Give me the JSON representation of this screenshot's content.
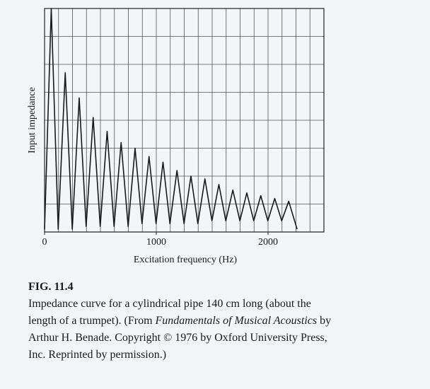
{
  "chart_data": {
    "type": "line",
    "xlabel": "Excitation frequency (Hz)",
    "ylabel": "Input impedance",
    "x": [
      0,
      60,
      122,
      185,
      248,
      310,
      372,
      435,
      498,
      560,
      622,
      685,
      748,
      810,
      872,
      935,
      998,
      1060,
      1122,
      1185,
      1248,
      1310,
      1372,
      1435,
      1498,
      1560,
      1622,
      1685,
      1748,
      1810,
      1872,
      1935,
      1998,
      2060,
      2122,
      2185,
      2260
    ],
    "values": [
      0.1,
      8,
      0.1,
      5.7,
      0.1,
      4.8,
      0.2,
      4.1,
      0.2,
      3.6,
      0.2,
      3.2,
      0.2,
      3.0,
      0.3,
      2.7,
      0.3,
      2.5,
      0.3,
      2.2,
      0.3,
      2.0,
      0.3,
      1.9,
      0.4,
      1.7,
      0.4,
      1.5,
      0.4,
      1.4,
      0.4,
      1.3,
      0.4,
      1.2,
      0.4,
      1.1,
      0.1
    ],
    "color": "#1a1a1a",
    "xlim": [
      0,
      2500
    ],
    "ylim": [
      0,
      8
    ],
    "xticks": [
      0,
      1000,
      2000
    ],
    "x_grid": [
      125,
      250,
      375,
      500,
      625,
      750,
      875,
      1000,
      1125,
      1250,
      1375,
      1500,
      1625,
      1750,
      1875,
      2000,
      2125,
      2250,
      2375
    ],
    "y_grid": [
      1,
      2,
      3,
      4,
      5,
      6,
      7
    ],
    "grid": true
  },
  "figure": {
    "label": "FIG. 11.4",
    "caption_before": "Impedance curve for a cylindrical pipe 140 cm long (about the length of a trumpet). (From",
    "caption_italic": "Fundamentals of Musical Acoustics",
    "caption_after": "by Arthur H. Benade. Copyright © 1976 by Oxford University Press, Inc. Reprinted by permission.)"
  }
}
